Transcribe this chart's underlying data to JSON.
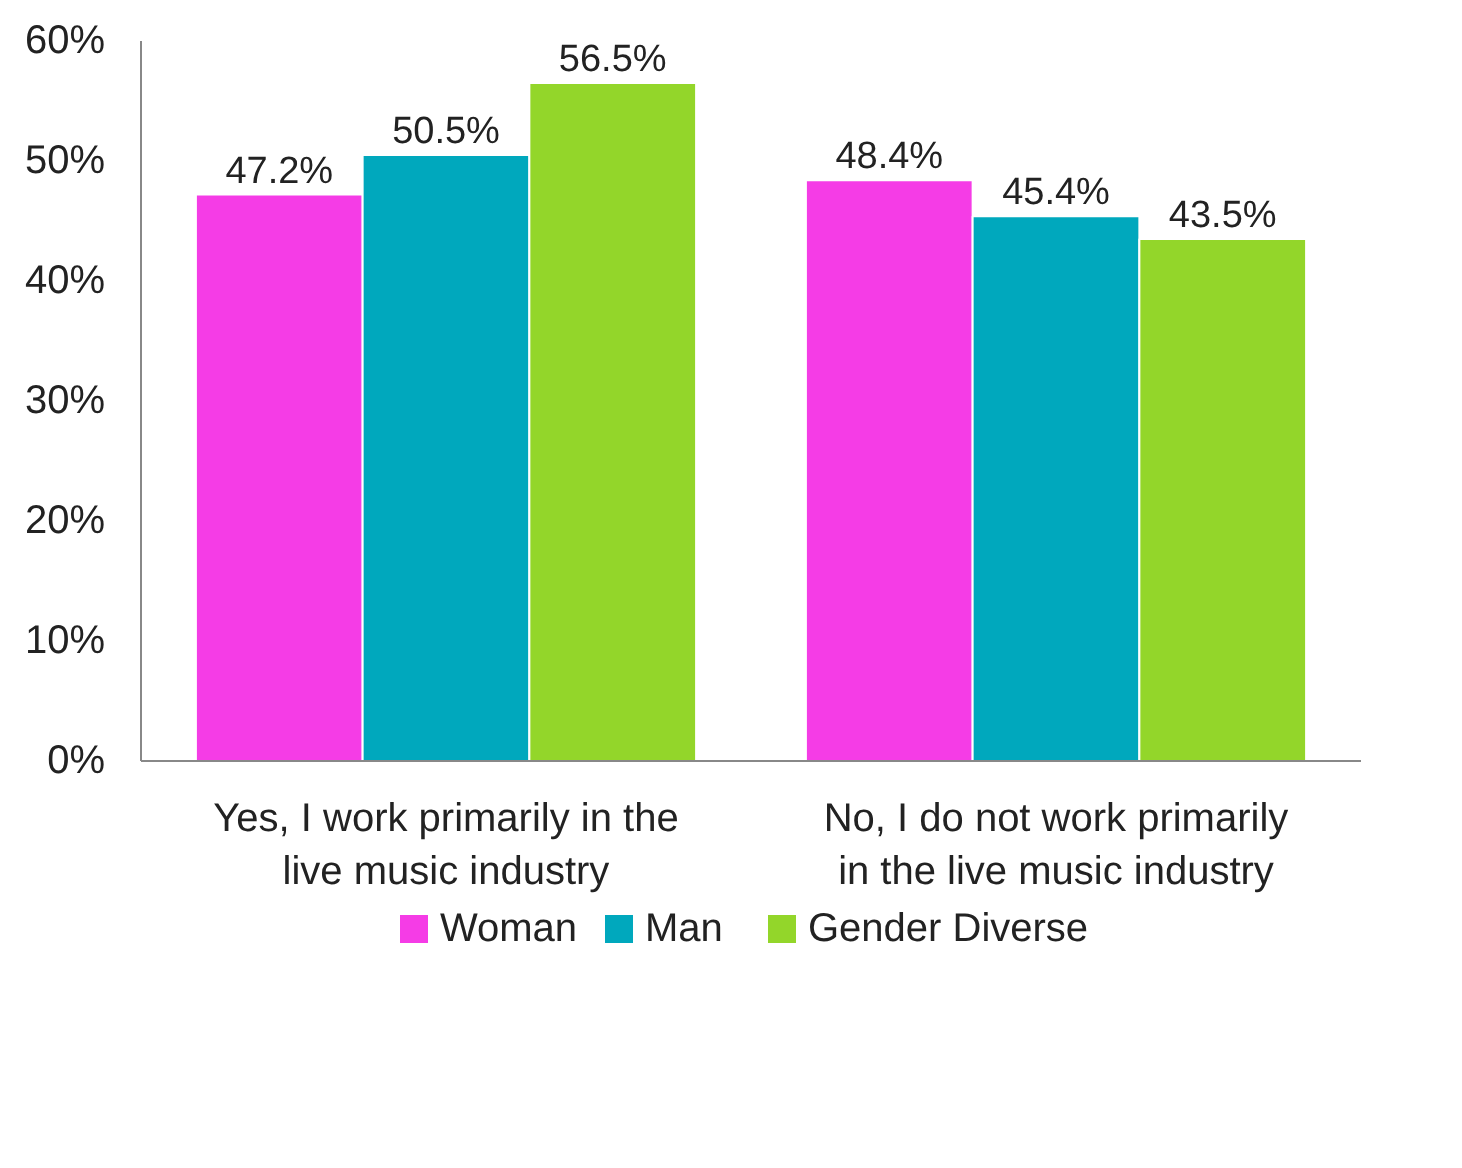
{
  "chart_data": {
    "type": "bar",
    "categories": [
      "Yes, I work primarily in the live music industry",
      "No, I do not work primarily in the live music industry"
    ],
    "series": [
      {
        "name": "Woman",
        "color": "#f53ce6",
        "values": [
          47.2,
          48.4
        ],
        "value_labels": [
          "47.2%",
          "48.4%"
        ]
      },
      {
        "name": "Man",
        "color": "#00a8bd",
        "values": [
          50.5,
          45.4
        ],
        "value_labels": [
          "50.5%",
          "45.4%"
        ]
      },
      {
        "name": "Gender Diverse",
        "color": "#93d62a",
        "values": [
          56.5,
          43.5
        ],
        "value_labels": [
          "56.5%",
          "43.5%"
        ]
      }
    ],
    "ylim": [
      0,
      60
    ],
    "yticks": [
      {
        "value": 0,
        "label": "0%"
      },
      {
        "value": 10,
        "label": "10%"
      },
      {
        "value": 20,
        "label": "20%"
      },
      {
        "value": 30,
        "label": "30%"
      },
      {
        "value": 40,
        "label": "40%"
      },
      {
        "value": 50,
        "label": "50%"
      },
      {
        "value": 60,
        "label": "60%"
      }
    ],
    "grid": false,
    "legend": "bottom"
  }
}
